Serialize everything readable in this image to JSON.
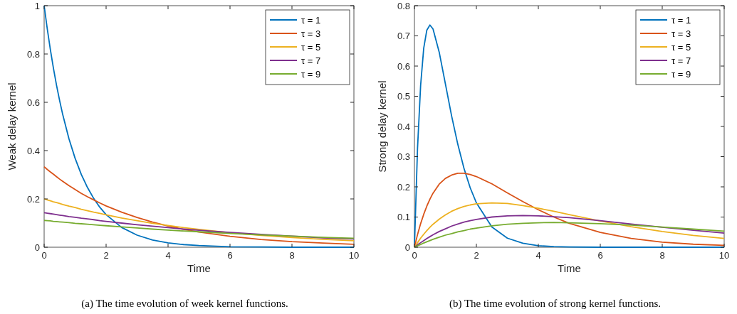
{
  "chart_data": [
    {
      "type": "line",
      "xlabel": "Time",
      "ylabel": "Weak delay kernel",
      "x": [
        0,
        0.1,
        0.2,
        0.3,
        0.4,
        0.5,
        0.6,
        0.8,
        1,
        1.2,
        1.4,
        1.6,
        1.8,
        2,
        2.5,
        3,
        3.5,
        4,
        4.5,
        5,
        6,
        7,
        8,
        9,
        10
      ],
      "xlim": [
        0,
        10
      ],
      "xticks": [
        0,
        2,
        4,
        6,
        8,
        10
      ],
      "ylim": [
        0,
        1
      ],
      "yticks": [
        0,
        0.2,
        0.4,
        0.6,
        0.8,
        1
      ],
      "legend": "top right",
      "grid": false,
      "annotations": [
        "(a)  The time evolution of week kernel functions."
      ],
      "series": [
        {
          "name": "τ = 1",
          "color": "#0072bd",
          "values": [
            1,
            0.905,
            0.819,
            0.741,
            0.67,
            0.607,
            0.549,
            0.449,
            0.368,
            0.301,
            0.247,
            0.202,
            0.165,
            0.135,
            0.082,
            0.05,
            0.03,
            0.018,
            0.011,
            0.007,
            0.002,
            0.001,
            0,
            0,
            0
          ]
        },
        {
          "name": "τ = 3",
          "color": "#d95319",
          "values": [
            0.333,
            0.322,
            0.312,
            0.302,
            0.292,
            0.282,
            0.273,
            0.255,
            0.239,
            0.223,
            0.209,
            0.196,
            0.183,
            0.171,
            0.145,
            0.123,
            0.104,
            0.088,
            0.074,
            0.063,
            0.045,
            0.032,
            0.023,
            0.017,
            0.012
          ]
        },
        {
          "name": "τ = 5",
          "color": "#edb120",
          "values": [
            0.2,
            0.196,
            0.192,
            0.188,
            0.185,
            0.181,
            0.177,
            0.17,
            0.164,
            0.157,
            0.151,
            0.145,
            0.14,
            0.134,
            0.121,
            0.11,
            0.099,
            0.09,
            0.081,
            0.074,
            0.06,
            0.049,
            0.04,
            0.033,
            0.027
          ]
        },
        {
          "name": "τ = 7",
          "color": "#7e2f8e",
          "values": [
            0.143,
            0.141,
            0.139,
            0.137,
            0.135,
            0.133,
            0.131,
            0.127,
            0.124,
            0.12,
            0.117,
            0.114,
            0.11,
            0.107,
            0.1,
            0.093,
            0.087,
            0.081,
            0.075,
            0.07,
            0.061,
            0.053,
            0.046,
            0.039,
            0.034
          ]
        },
        {
          "name": "τ = 9",
          "color": "#77ac30",
          "values": [
            0.111,
            0.11,
            0.109,
            0.107,
            0.106,
            0.105,
            0.104,
            0.102,
            0.099,
            0.097,
            0.095,
            0.093,
            0.091,
            0.089,
            0.084,
            0.08,
            0.075,
            0.071,
            0.067,
            0.064,
            0.057,
            0.051,
            0.046,
            0.041,
            0.037
          ]
        }
      ]
    },
    {
      "type": "line",
      "xlabel": "Time",
      "ylabel": "Strong delay kernel",
      "x": [
        0,
        0.1,
        0.2,
        0.3,
        0.4,
        0.5,
        0.6,
        0.8,
        1,
        1.2,
        1.4,
        1.6,
        1.8,
        2,
        2.5,
        3,
        3.5,
        4,
        4.5,
        5,
        6,
        7,
        8,
        9,
        10
      ],
      "xlim": [
        0,
        10
      ],
      "xticks": [
        0,
        2,
        4,
        6,
        8,
        10
      ],
      "ylim": [
        0,
        0.8
      ],
      "yticks": [
        0,
        0.1,
        0.2,
        0.3,
        0.4,
        0.5,
        0.6,
        0.7,
        0.8
      ],
      "legend": "top right",
      "grid": false,
      "annotations": [
        "(b)  The time evolution of strong kernel functions."
      ],
      "series": [
        {
          "name": "τ = 1",
          "color": "#0072bd",
          "values": [
            0,
            0.328,
            0.536,
            0.659,
            0.719,
            0.736,
            0.723,
            0.646,
            0.541,
            0.435,
            0.341,
            0.261,
            0.197,
            0.147,
            0.067,
            0.03,
            0.013,
            0.005,
            0.002,
            0.001,
            0,
            0,
            0,
            0,
            0
          ]
        },
        {
          "name": "τ = 3",
          "color": "#d95319",
          "values": [
            0,
            0.042,
            0.078,
            0.109,
            0.136,
            0.159,
            0.179,
            0.209,
            0.228,
            0.239,
            0.245,
            0.245,
            0.241,
            0.234,
            0.21,
            0.18,
            0.151,
            0.124,
            0.1,
            0.079,
            0.049,
            0.029,
            0.017,
            0.01,
            0.006
          ]
        },
        {
          "name": "τ = 5",
          "color": "#edb120",
          "values": [
            0,
            0.015,
            0.03,
            0.043,
            0.055,
            0.066,
            0.076,
            0.093,
            0.107,
            0.119,
            0.128,
            0.135,
            0.14,
            0.144,
            0.147,
            0.145,
            0.138,
            0.129,
            0.119,
            0.108,
            0.087,
            0.068,
            0.052,
            0.039,
            0.029
          ]
        },
        {
          "name": "τ = 7",
          "color": "#7e2f8e",
          "values": [
            0,
            0.008,
            0.015,
            0.022,
            0.029,
            0.035,
            0.041,
            0.052,
            0.061,
            0.07,
            0.077,
            0.083,
            0.088,
            0.092,
            0.1,
            0.104,
            0.105,
            0.104,
            0.101,
            0.098,
            0.088,
            0.077,
            0.066,
            0.056,
            0.047
          ]
        },
        {
          "name": "τ = 9",
          "color": "#77ac30",
          "values": [
            0,
            0.005,
            0.009,
            0.014,
            0.018,
            0.022,
            0.026,
            0.033,
            0.04,
            0.045,
            0.051,
            0.055,
            0.06,
            0.063,
            0.071,
            0.076,
            0.079,
            0.081,
            0.082,
            0.081,
            0.078,
            0.073,
            0.067,
            0.06,
            0.053
          ]
        }
      ]
    }
  ]
}
